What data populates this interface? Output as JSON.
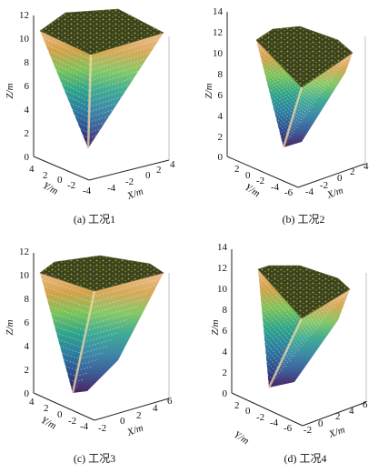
{
  "colors": {
    "axis": "#222222",
    "box": "#777777",
    "gradient": [
      "#3a0f57",
      "#2d4f8f",
      "#2d7fa0",
      "#2fa58a",
      "#7cc45a",
      "#d2a24a",
      "#efb98a"
    ],
    "top": "#3c4220",
    "top_speckle": "#a7b235"
  },
  "chart_data": [
    {
      "type": "surface3d",
      "caption": "(a) 工况1",
      "zlabel": "Z/m",
      "xlabel": "X/m",
      "ylabel": "Y/m",
      "zlim": [
        0,
        12
      ],
      "zticks": [
        0,
        2,
        4,
        6,
        8,
        10,
        12
      ],
      "yticks": [
        4,
        2,
        0,
        -2,
        -4
      ],
      "xticks": [
        -4,
        -2,
        0,
        2,
        4
      ],
      "surface_top_z": 11,
      "apex_z": 0.5
    },
    {
      "type": "surface3d",
      "caption": "(b) 工况2",
      "zlabel": "Z/m",
      "xlabel": "X/m",
      "ylabel": "Y/m",
      "zlim": [
        0,
        14
      ],
      "zticks": [
        0,
        2,
        4,
        6,
        8,
        10,
        12,
        14
      ],
      "yticks": [
        2,
        0,
        -2,
        -4,
        -6
      ],
      "xticks": [
        -4,
        -2,
        0,
        2,
        4
      ],
      "surface_top_z": 12,
      "apex_z": 1.5
    },
    {
      "type": "surface3d",
      "caption": "(c) 工况3",
      "zlabel": "Z/m",
      "xlabel": "X/m",
      "ylabel": "Y/m",
      "zlim": [
        0,
        12
      ],
      "zticks": [
        0,
        2,
        4,
        6,
        8,
        10,
        12
      ],
      "yticks": [
        4,
        2,
        0,
        -2,
        -4
      ],
      "xticks": [
        -2,
        0,
        2,
        4,
        6
      ],
      "surface_top_z": 11,
      "apex_z": 0
    },
    {
      "type": "surface3d",
      "caption": "(d) 工况4",
      "zlabel": "Z/m",
      "xlabel": "X/m",
      "ylabel": "Y/m",
      "zlim": [
        0,
        14
      ],
      "zticks": [
        0,
        2,
        4,
        6,
        8,
        10,
        12,
        14
      ],
      "yticks": [
        2,
        0,
        -2,
        -4,
        -6
      ],
      "xticks": [
        -2,
        0,
        2,
        4,
        6
      ],
      "surface_top_z": 12,
      "apex_z": 0.5
    }
  ]
}
